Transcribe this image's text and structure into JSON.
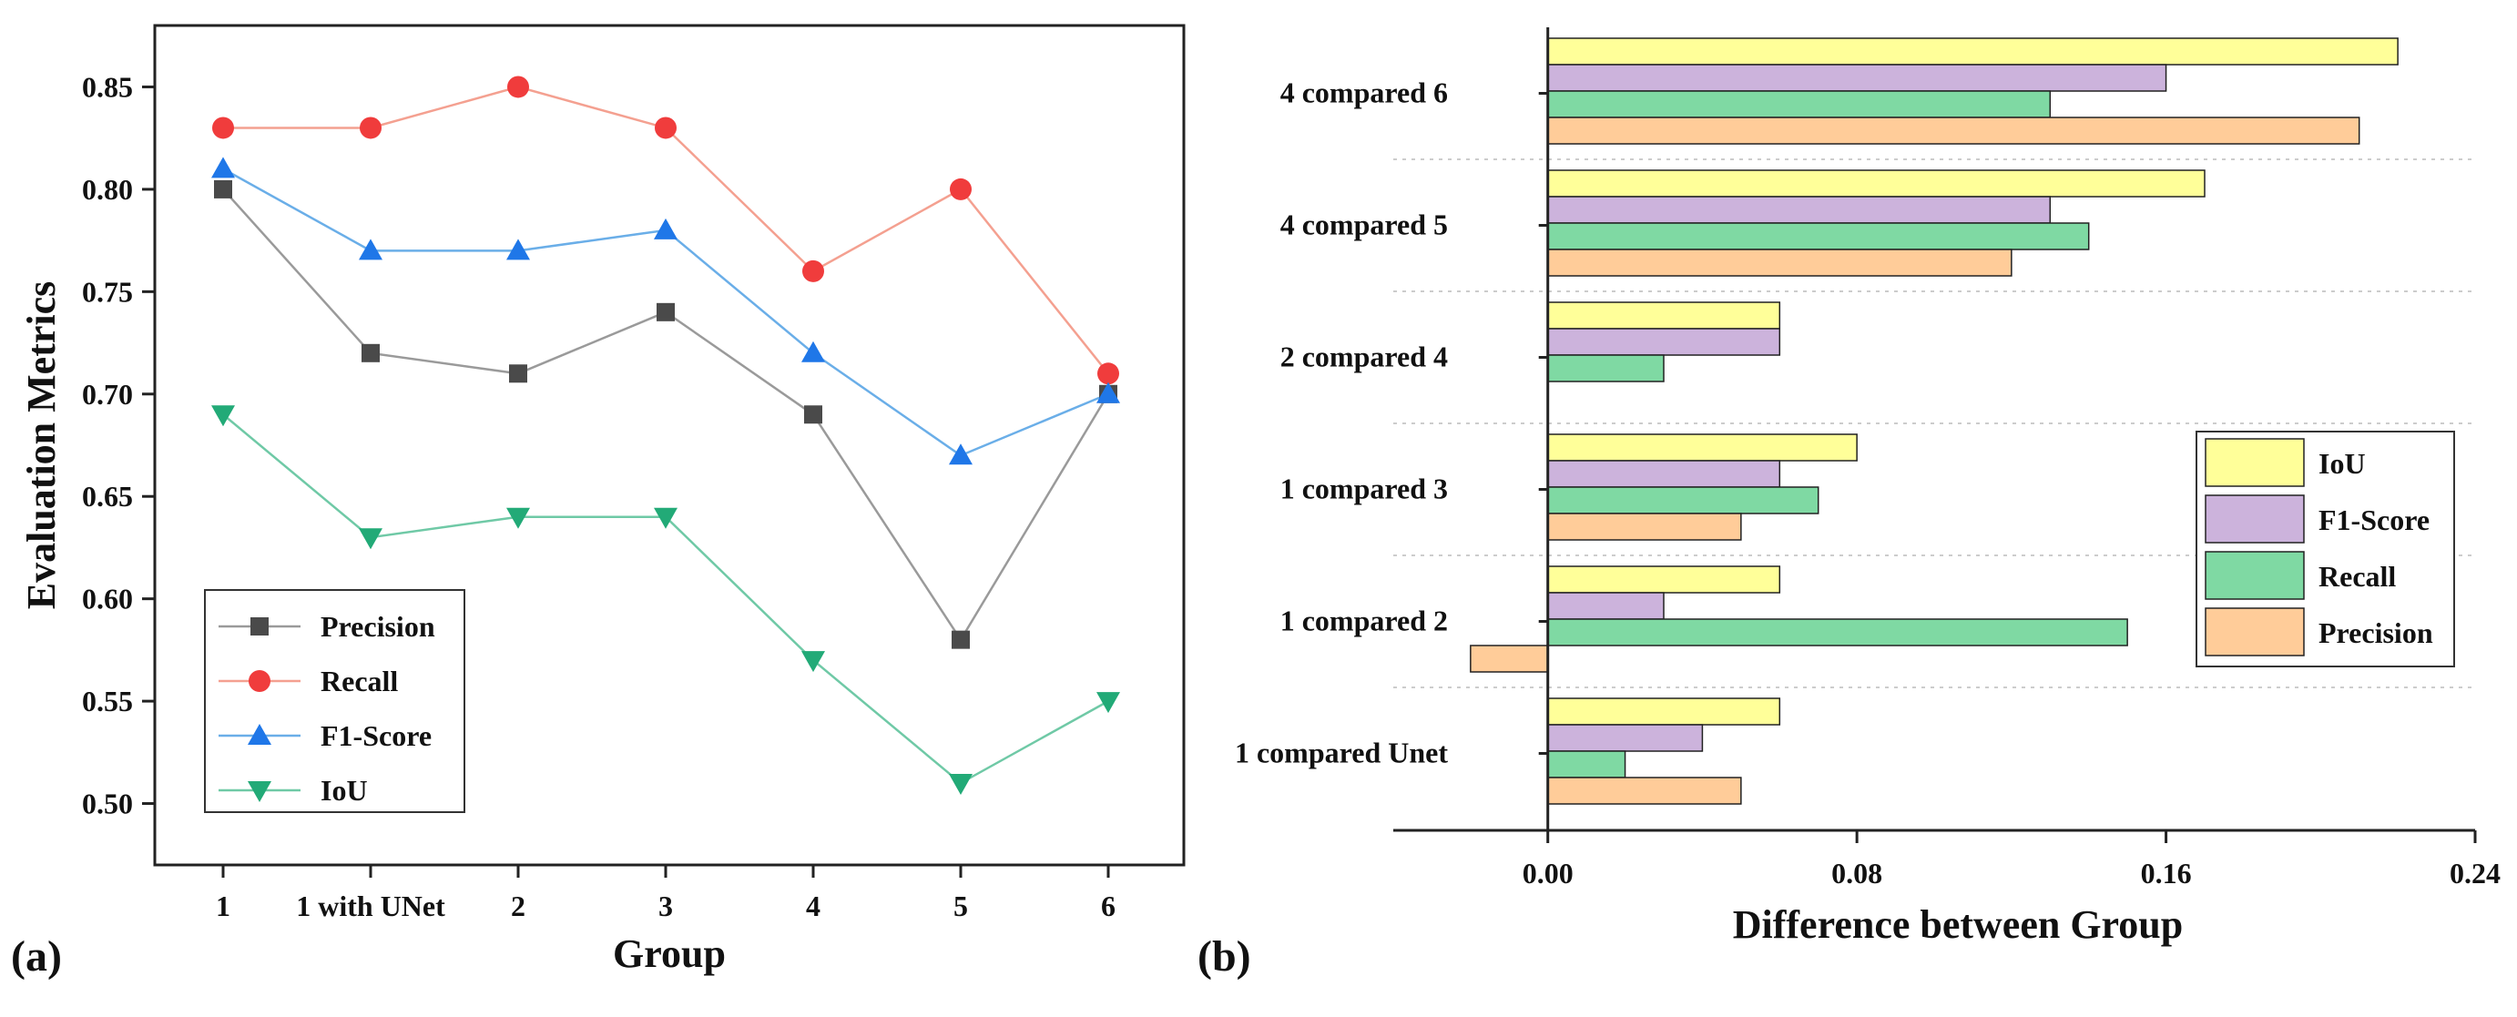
{
  "chart_data": [
    {
      "panel_label": "(a)",
      "type": "line",
      "xlabel": "Group",
      "ylabel": "Evaluation Metrics",
      "categories": [
        "1",
        "1 with UNet",
        "2",
        "3",
        "4",
        "5",
        "6"
      ],
      "ylim": [
        0.47,
        0.88
      ],
      "yticks": [
        "0.50",
        "0.55",
        "0.60",
        "0.65",
        "0.70",
        "0.75",
        "0.80",
        "0.85"
      ],
      "legend_position": "bottom-left",
      "series": [
        {
          "name": "Precision",
          "color": "#4a4a4a",
          "line_color": "#9a9a9a",
          "marker": "square",
          "values": [
            0.8,
            0.72,
            0.71,
            0.74,
            0.69,
            0.58,
            0.7
          ]
        },
        {
          "name": "Recall",
          "color": "#f03c3c",
          "line_color": "#f4a090",
          "marker": "circle",
          "values": [
            0.83,
            0.83,
            0.85,
            0.83,
            0.76,
            0.8,
            0.71
          ]
        },
        {
          "name": "F1-Score",
          "color": "#1f77e8",
          "line_color": "#6aaee8",
          "marker": "triangle-up",
          "values": [
            0.81,
            0.77,
            0.77,
            0.78,
            0.72,
            0.67,
            0.7
          ]
        },
        {
          "name": "IoU",
          "color": "#22aa77",
          "line_color": "#6fc9a6",
          "marker": "triangle-down",
          "values": [
            0.69,
            0.63,
            0.64,
            0.64,
            0.57,
            0.51,
            0.55
          ]
        }
      ]
    },
    {
      "panel_label": "(b)",
      "type": "bar",
      "orientation": "horizontal",
      "xlabel": "Difference between Group",
      "ylabel": "",
      "categories": [
        "1 compared Unet",
        "1 compared 2",
        "1 compared 3",
        "2 compared 4",
        "4 compared 5",
        "4 compared 6"
      ],
      "xlim": [
        -0.04,
        0.24
      ],
      "xticks": [
        "0.00",
        "0.08",
        "0.16",
        "0.24"
      ],
      "legend_position": "right",
      "series": [
        {
          "name": "IoU",
          "color": "#ffff99",
          "values": [
            0.06,
            0.06,
            0.08,
            0.06,
            0.17,
            0.22
          ]
        },
        {
          "name": "F1-Score",
          "color": "#ccb3dc",
          "values": [
            0.04,
            0.03,
            0.06,
            0.06,
            0.13,
            0.16
          ]
        },
        {
          "name": "Recall",
          "color": "#7fd9a3",
          "values": [
            0.02,
            0.15,
            0.07,
            0.03,
            0.14,
            0.13
          ]
        },
        {
          "name": "Precision",
          "color": "#ffcc99",
          "values": [
            0.05,
            -0.02,
            0.05,
            0.0,
            0.12,
            0.21
          ]
        }
      ]
    }
  ]
}
